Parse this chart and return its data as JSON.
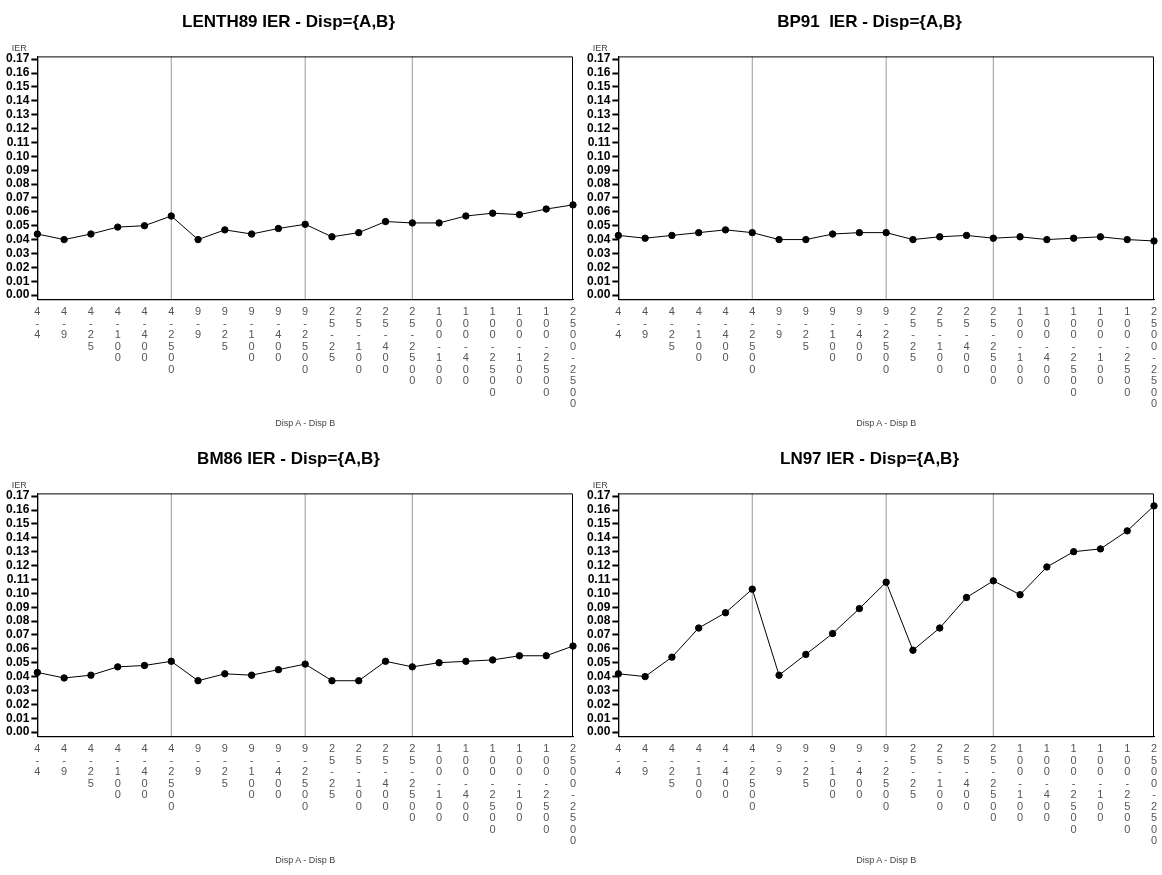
{
  "chart_data": [
    {
      "type": "line",
      "title": "LENTH89 IER - Disp={A,B}",
      "xlabel": "Disp A - Disp B",
      "ylabel": "IER",
      "categories": [
        "4-4",
        "4-9",
        "4-25",
        "4-100",
        "4-400",
        "4-2500",
        "9-9",
        "9-25",
        "9-100",
        "9-400",
        "9-2500",
        "25-25",
        "25-100",
        "25-400",
        "25-2500",
        "100-100",
        "100-400",
        "100-2500",
        "100-100",
        "100-2500",
        "2500-2500"
      ],
      "series": [
        {
          "color": "#000000",
          "values": [
            0.044,
            0.04,
            0.044,
            0.049,
            0.05,
            0.057,
            0.04,
            0.047,
            0.044,
            0.048,
            0.051,
            0.042,
            0.045,
            0.053,
            0.052,
            0.052,
            0.057,
            0.059,
            0.058,
            0.062,
            0.065
          ]
        }
      ],
      "ylim": [
        -0.003,
        0.172
      ],
      "yticks": [
        {
          "value": 0,
          "label": "0.00"
        },
        {
          "value": 0.01,
          "label": "0.01"
        },
        {
          "value": 0.02,
          "label": "0.02"
        },
        {
          "value": 0.03,
          "label": "0.03"
        },
        {
          "value": 0.04,
          "label": "0.04"
        },
        {
          "value": 0.05,
          "label": "0.05"
        },
        {
          "value": 0.06,
          "label": "0.06"
        },
        {
          "value": 0.07,
          "label": "0.07"
        },
        {
          "value": 0.08,
          "label": "0.08"
        },
        {
          "value": 0.09,
          "label": "0.09"
        },
        {
          "value": 0.1,
          "label": "0.10"
        },
        {
          "value": 0.11,
          "label": "0.11"
        },
        {
          "value": 0.12,
          "label": "0.12"
        },
        {
          "value": 0.13,
          "label": "0.13"
        },
        {
          "value": 0.14,
          "label": "0.14"
        },
        {
          "value": 0.15,
          "label": "0.15"
        },
        {
          "value": 0.16,
          "label": "0.16"
        },
        {
          "value": 0.17,
          "label": "0.17"
        }
      ],
      "ref_lines": [
        {
          "axis": "x",
          "value": "4-2500",
          "color": "#999999"
        },
        {
          "axis": "x",
          "value": "9-2500",
          "color": "#999999"
        },
        {
          "axis": "x",
          "value": "25-2500",
          "color": "#999999"
        }
      ],
      "grid": false,
      "legend": false,
      "marker": "circle",
      "line_style": "solid"
    },
    {
      "type": "line",
      "title": "BP91  IER - Disp={A,B}",
      "xlabel": "Disp A - Disp B",
      "ylabel": "IER",
      "categories": [
        "4-4",
        "4-9",
        "4-25",
        "4-100",
        "4-400",
        "4-2500",
        "9-9",
        "9-25",
        "9-100",
        "9-400",
        "9-2500",
        "25-25",
        "25-100",
        "25-400",
        "25-2500",
        "100-100",
        "100-400",
        "100-2500",
        "100-100",
        "100-2500",
        "2500-2500"
      ],
      "series": [
        {
          "color": "#000000",
          "values": [
            0.043,
            0.041,
            0.043,
            0.045,
            0.047,
            0.045,
            0.04,
            0.04,
            0.044,
            0.045,
            0.045,
            0.04,
            0.042,
            0.043,
            0.041,
            0.042,
            0.04,
            0.041,
            0.042,
            0.04,
            0.039
          ]
        }
      ],
      "ylim": [
        -0.003,
        0.172
      ],
      "yticks": [
        {
          "value": 0,
          "label": "0.00"
        },
        {
          "value": 0.01,
          "label": "0.01"
        },
        {
          "value": 0.02,
          "label": "0.02"
        },
        {
          "value": 0.03,
          "label": "0.03"
        },
        {
          "value": 0.04,
          "label": "0.04"
        },
        {
          "value": 0.05,
          "label": "0.05"
        },
        {
          "value": 0.06,
          "label": "0.06"
        },
        {
          "value": 0.07,
          "label": "0.07"
        },
        {
          "value": 0.08,
          "label": "0.08"
        },
        {
          "value": 0.09,
          "label": "0.09"
        },
        {
          "value": 0.1,
          "label": "0.10"
        },
        {
          "value": 0.11,
          "label": "0.11"
        },
        {
          "value": 0.12,
          "label": "0.12"
        },
        {
          "value": 0.13,
          "label": "0.13"
        },
        {
          "value": 0.14,
          "label": "0.14"
        },
        {
          "value": 0.15,
          "label": "0.15"
        },
        {
          "value": 0.16,
          "label": "0.16"
        },
        {
          "value": 0.17,
          "label": "0.17"
        }
      ],
      "ref_lines": [
        {
          "axis": "x",
          "value": "4-2500",
          "color": "#999999"
        },
        {
          "axis": "x",
          "value": "9-2500",
          "color": "#999999"
        },
        {
          "axis": "x",
          "value": "25-2500",
          "color": "#999999"
        }
      ],
      "grid": false,
      "legend": false,
      "marker": "circle",
      "line_style": "solid"
    },
    {
      "type": "line",
      "title": "BM86 IER - Disp={A,B}",
      "xlabel": "Disp A - Disp B",
      "ylabel": "IER",
      "categories": [
        "4-4",
        "4-9",
        "4-25",
        "4-100",
        "4-400",
        "4-2500",
        "9-9",
        "9-25",
        "9-100",
        "9-400",
        "9-2500",
        "25-25",
        "25-100",
        "25-400",
        "25-2500",
        "100-100",
        "100-400",
        "100-2500",
        "100-100",
        "100-2500",
        "2500-2500"
      ],
      "series": [
        {
          "color": "#000000",
          "values": [
            0.043,
            0.039,
            0.041,
            0.047,
            0.048,
            0.051,
            0.037,
            0.042,
            0.041,
            0.045,
            0.049,
            0.037,
            0.037,
            0.051,
            0.047,
            0.05,
            0.051,
            0.052,
            0.055,
            0.055,
            0.062
          ]
        }
      ],
      "ylim": [
        -0.003,
        0.172
      ],
      "yticks": [
        {
          "value": 0,
          "label": "0.00"
        },
        {
          "value": 0.01,
          "label": "0.01"
        },
        {
          "value": 0.02,
          "label": "0.02"
        },
        {
          "value": 0.03,
          "label": "0.03"
        },
        {
          "value": 0.04,
          "label": "0.04"
        },
        {
          "value": 0.05,
          "label": "0.05"
        },
        {
          "value": 0.06,
          "label": "0.06"
        },
        {
          "value": 0.07,
          "label": "0.07"
        },
        {
          "value": 0.08,
          "label": "0.08"
        },
        {
          "value": 0.09,
          "label": "0.09"
        },
        {
          "value": 0.1,
          "label": "0.10"
        },
        {
          "value": 0.11,
          "label": "0.11"
        },
        {
          "value": 0.12,
          "label": "0.12"
        },
        {
          "value": 0.13,
          "label": "0.13"
        },
        {
          "value": 0.14,
          "label": "0.14"
        },
        {
          "value": 0.15,
          "label": "0.15"
        },
        {
          "value": 0.16,
          "label": "0.16"
        },
        {
          "value": 0.17,
          "label": "0.17"
        }
      ],
      "ref_lines": [
        {
          "axis": "x",
          "value": "4-2500",
          "color": "#999999"
        },
        {
          "axis": "x",
          "value": "9-2500",
          "color": "#999999"
        },
        {
          "axis": "x",
          "value": "25-2500",
          "color": "#999999"
        }
      ],
      "grid": false,
      "legend": false,
      "marker": "circle",
      "line_style": "solid"
    },
    {
      "type": "line",
      "title": "LN97 IER - Disp={A,B}",
      "xlabel": "Disp A - Disp B",
      "ylabel": "IER",
      "categories": [
        "4-4",
        "4-9",
        "4-25",
        "4-100",
        "4-400",
        "4-2500",
        "9-9",
        "9-25",
        "9-100",
        "9-400",
        "9-2500",
        "25-25",
        "25-100",
        "25-400",
        "25-2500",
        "100-100",
        "100-400",
        "100-2500",
        "100-100",
        "100-2500",
        "2500-2500"
      ],
      "series": [
        {
          "color": "#000000",
          "values": [
            0.042,
            0.04,
            0.054,
            0.075,
            0.086,
            0.103,
            0.041,
            0.056,
            0.071,
            0.089,
            0.108,
            0.059,
            0.075,
            0.097,
            0.109,
            0.099,
            0.119,
            0.13,
            0.132,
            0.145,
            0.163
          ]
        }
      ],
      "ylim": [
        -0.003,
        0.172
      ],
      "yticks": [
        {
          "value": 0,
          "label": "0.00"
        },
        {
          "value": 0.01,
          "label": "0.01"
        },
        {
          "value": 0.02,
          "label": "0.02"
        },
        {
          "value": 0.03,
          "label": "0.03"
        },
        {
          "value": 0.04,
          "label": "0.04"
        },
        {
          "value": 0.05,
          "label": "0.05"
        },
        {
          "value": 0.06,
          "label": "0.06"
        },
        {
          "value": 0.07,
          "label": "0.07"
        },
        {
          "value": 0.08,
          "label": "0.08"
        },
        {
          "value": 0.09,
          "label": "0.09"
        },
        {
          "value": 0.1,
          "label": "0.10"
        },
        {
          "value": 0.11,
          "label": "0.11"
        },
        {
          "value": 0.12,
          "label": "0.12"
        },
        {
          "value": 0.13,
          "label": "0.13"
        },
        {
          "value": 0.14,
          "label": "0.14"
        },
        {
          "value": 0.15,
          "label": "0.15"
        },
        {
          "value": 0.16,
          "label": "0.16"
        },
        {
          "value": 0.17,
          "label": "0.17"
        }
      ],
      "ref_lines": [
        {
          "axis": "x",
          "value": "4-2500",
          "color": "#999999"
        },
        {
          "axis": "x",
          "value": "9-2500",
          "color": "#999999"
        },
        {
          "axis": "x",
          "value": "25-2500",
          "color": "#999999"
        }
      ],
      "grid": false,
      "legend": false,
      "marker": "circle",
      "line_style": "solid"
    }
  ]
}
